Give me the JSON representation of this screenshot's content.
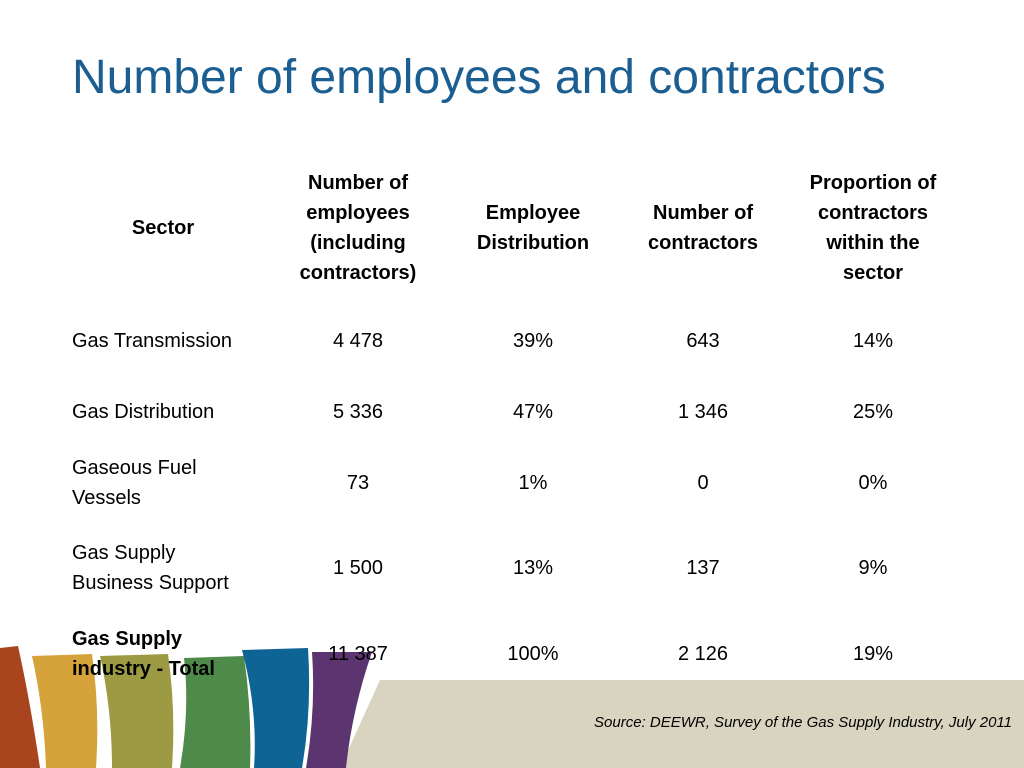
{
  "slide": {
    "title": "Number of employees and contractors",
    "source": "Source: DEEWR, Survey of the Gas Supply Industry, July 2011"
  },
  "table": {
    "headers": {
      "sector": "Sector",
      "employees": "Number of employees (including contractors)",
      "distribution": "Employee Distribution",
      "contractors": "Number of contractors",
      "proportion": "Proportion of contractors within the sector"
    },
    "rows": [
      {
        "sector": "Gas Transmission",
        "employees": "4 478",
        "distribution": "39%",
        "contractors": "643",
        "proportion": "14%"
      },
      {
        "sector": "Gas Distribution",
        "employees": "5 336",
        "distribution": "47%",
        "contractors": "1 346",
        "proportion": "25%"
      },
      {
        "sector": "Gaseous Fuel Vessels",
        "employees": "73",
        "distribution": "1%",
        "contractors": "0",
        "proportion": "0%"
      },
      {
        "sector": "Gas Supply Business Support",
        "employees": "1 500",
        "distribution": "13%",
        "contractors": "137",
        "proportion": "9%"
      },
      {
        "sector": "Gas Supply industry - Total",
        "employees": "11 387",
        "distribution": "100%",
        "contractors": "2 126",
        "proportion": "19%"
      }
    ]
  },
  "colors": {
    "title": "#1b5e91",
    "footer_band": "#d8d4c0",
    "stripes": [
      "#a8451f",
      "#d6a23a",
      "#9c9a42",
      "#4e8a4a",
      "#0f6496",
      "#5c3570"
    ]
  }
}
